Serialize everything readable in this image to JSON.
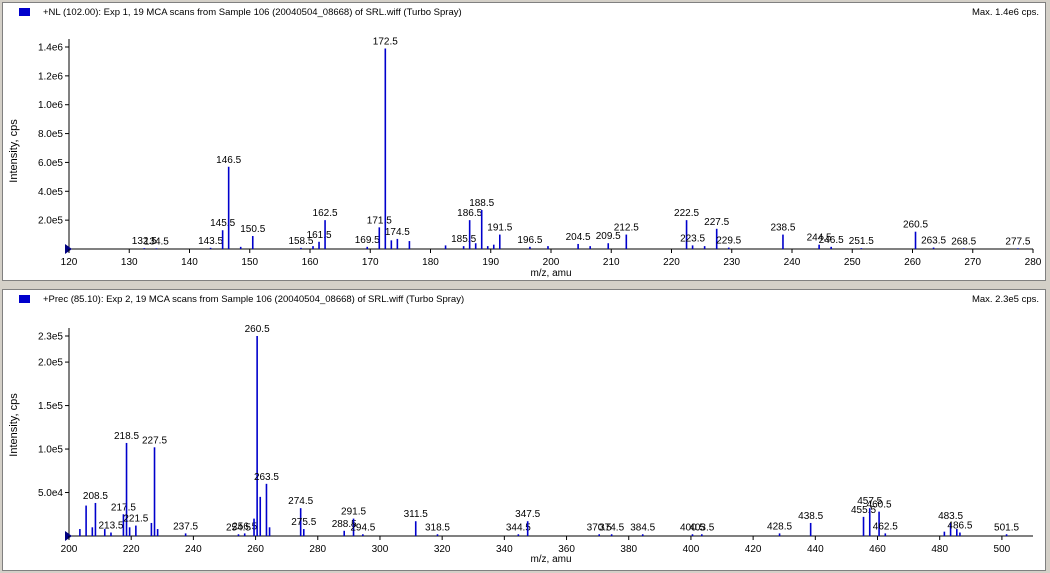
{
  "panels": [
    {
      "title": "+NL (102.00): Exp 1, 19 MCA scans from Sample 106 (20040504_08668) of SRL.wiff (Turbo Spray)",
      "max_label": "Max. 1.4e6 cps.",
      "xlabel": "m/z, amu",
      "ylabel": "Intensity, cps",
      "accent": "#0000cc"
    },
    {
      "title": "+Prec (85.10): Exp 2, 19 MCA scans from Sample 106 (20040504_08668) of SRL.wiff (Turbo Spray)",
      "max_label": "Max. 2.3e5 cps.",
      "xlabel": "m/z, amu",
      "ylabel": "Intensity, cps",
      "accent": "#0000cc"
    }
  ],
  "chart_data": [
    {
      "type": "bar",
      "title": "+NL (102.00): Exp 1, 19 MCA scans from Sample 106 (20040504_08668) of SRL.wiff (Turbo Spray)",
      "xlabel": "m/z, amu",
      "ylabel": "Intensity, cps",
      "xlim": [
        120,
        280
      ],
      "ylim": [
        0,
        1400000.0
      ],
      "xticks": [
        120,
        130,
        140,
        150,
        160,
        170,
        180,
        190,
        200,
        210,
        220,
        230,
        240,
        250,
        260,
        270,
        280
      ],
      "yticks": [
        200000.0,
        400000.0,
        600000.0,
        800000.0,
        1000000.0,
        1200000.0,
        1400000.0
      ],
      "ytick_labels": [
        "2.0e5",
        "4.0e5",
        "6.0e5",
        "8.0e5",
        "1.0e6",
        "1.2e6",
        "1.4e6"
      ],
      "peaks": [
        {
          "x": 132.5,
          "y": 6000,
          "label": "132.5"
        },
        {
          "x": 134.5,
          "y": 5000,
          "label": "134.5"
        },
        {
          "x": 143.5,
          "y": 8000,
          "label": "143.5"
        },
        {
          "x": 145.5,
          "y": 130000,
          "label": "145.5"
        },
        {
          "x": 146.5,
          "y": 570000,
          "label": "146.5"
        },
        {
          "x": 148.5,
          "y": 15000
        },
        {
          "x": 150.5,
          "y": 90000,
          "label": "150.5"
        },
        {
          "x": 158.5,
          "y": 8000,
          "label": "158.5"
        },
        {
          "x": 160.5,
          "y": 20000
        },
        {
          "x": 161.5,
          "y": 50000,
          "label": "161.5"
        },
        {
          "x": 162.5,
          "y": 200000,
          "label": "162.5"
        },
        {
          "x": 169.5,
          "y": 15000,
          "label": "169.5"
        },
        {
          "x": 171.5,
          "y": 150000,
          "label": "171.5"
        },
        {
          "x": 172.5,
          "y": 1390000,
          "label": "172.5"
        },
        {
          "x": 173.5,
          "y": 60000
        },
        {
          "x": 174.5,
          "y": 70000,
          "label": "174.5"
        },
        {
          "x": 176.5,
          "y": 55000
        },
        {
          "x": 182.5,
          "y": 25000
        },
        {
          "x": 185.5,
          "y": 20000,
          "label": "185.5"
        },
        {
          "x": 186.5,
          "y": 200000,
          "label": "186.5"
        },
        {
          "x": 187.5,
          "y": 40000
        },
        {
          "x": 188.5,
          "y": 270000,
          "label": "188.5"
        },
        {
          "x": 189.5,
          "y": 20000
        },
        {
          "x": 190.5,
          "y": 30000
        },
        {
          "x": 191.5,
          "y": 100000,
          "label": "191.5"
        },
        {
          "x": 196.5,
          "y": 15000,
          "label": "196.5"
        },
        {
          "x": 199.5,
          "y": 20000
        },
        {
          "x": 204.5,
          "y": 35000,
          "label": "204.5"
        },
        {
          "x": 206.5,
          "y": 20000
        },
        {
          "x": 209.5,
          "y": 40000,
          "label": "209.5"
        },
        {
          "x": 212.5,
          "y": 100000,
          "label": "212.5"
        },
        {
          "x": 222.5,
          "y": 200000,
          "label": "222.5"
        },
        {
          "x": 223.5,
          "y": 25000,
          "label": "223.5"
        },
        {
          "x": 225.5,
          "y": 20000
        },
        {
          "x": 227.5,
          "y": 140000,
          "label": "227.5"
        },
        {
          "x": 229.5,
          "y": 10000,
          "label": "229.5"
        },
        {
          "x": 238.5,
          "y": 100000,
          "label": "238.5"
        },
        {
          "x": 244.5,
          "y": 30000,
          "label": "244.5"
        },
        {
          "x": 246.5,
          "y": 15000,
          "label": "246.5"
        },
        {
          "x": 251.5,
          "y": 6000,
          "label": "251.5"
        },
        {
          "x": 260.5,
          "y": 120000,
          "label": "260.5"
        },
        {
          "x": 263.5,
          "y": 10000,
          "label": "263.5"
        },
        {
          "x": 268.5,
          "y": 5000,
          "label": "268.5"
        },
        {
          "x": 277.5,
          "y": 5000,
          "label": "277.5"
        }
      ]
    },
    {
      "type": "bar",
      "title": "+Prec (85.10): Exp 2, 19 MCA scans from Sample 106 (20040504_08668) of SRL.wiff (Turbo Spray)",
      "xlabel": "m/z, amu",
      "ylabel": "Intensity, cps",
      "xlim": [
        200,
        510
      ],
      "ylim": [
        0,
        230000.0
      ],
      "xticks": [
        200,
        220,
        240,
        260,
        280,
        300,
        320,
        340,
        360,
        380,
        400,
        420,
        440,
        460,
        480,
        500
      ],
      "yticks": [
        50000.0,
        100000.0,
        150000.0,
        200000.0
      ],
      "ytick_labels": [
        "5.0e4",
        "1.0e5",
        "1.5e5",
        "2.0e5"
      ],
      "max_tick": {
        "value": 230000.0,
        "label": "2.3e5"
      },
      "peaks": [
        {
          "x": 203.5,
          "y": 8000
        },
        {
          "x": 205.5,
          "y": 35000
        },
        {
          "x": 207.5,
          "y": 10000
        },
        {
          "x": 208.5,
          "y": 38000,
          "label": "208.5"
        },
        {
          "x": 211.5,
          "y": 8000
        },
        {
          "x": 213.5,
          "y": 4000,
          "label": "213.5"
        },
        {
          "x": 217.5,
          "y": 25000,
          "label": "217.5"
        },
        {
          "x": 218.5,
          "y": 107000,
          "label": "218.5"
        },
        {
          "x": 219.5,
          "y": 10000
        },
        {
          "x": 221.5,
          "y": 12000,
          "label": "221.5"
        },
        {
          "x": 226.5,
          "y": 15000
        },
        {
          "x": 227.5,
          "y": 102000,
          "label": "227.5"
        },
        {
          "x": 228.5,
          "y": 8000
        },
        {
          "x": 237.5,
          "y": 3000,
          "label": "237.5"
        },
        {
          "x": 254.5,
          "y": 2000,
          "label": "254.5"
        },
        {
          "x": 256.5,
          "y": 3000,
          "label": "256.5"
        },
        {
          "x": 259.5,
          "y": 20000
        },
        {
          "x": 260.5,
          "y": 230000,
          "label": "260.5"
        },
        {
          "x": 261.5,
          "y": 45000
        },
        {
          "x": 263.5,
          "y": 60000,
          "label": "263.5"
        },
        {
          "x": 264.5,
          "y": 10000
        },
        {
          "x": 274.5,
          "y": 32000,
          "label": "274.5"
        },
        {
          "x": 275.5,
          "y": 8000,
          "label": "275.5"
        },
        {
          "x": 288.5,
          "y": 6000,
          "label": "288.5"
        },
        {
          "x": 291.5,
          "y": 20000,
          "label": "291.5"
        },
        {
          "x": 294.5,
          "y": 2000,
          "label": "294.5"
        },
        {
          "x": 311.5,
          "y": 17000,
          "label": "311.5"
        },
        {
          "x": 318.5,
          "y": 2000,
          "label": "318.5"
        },
        {
          "x": 344.5,
          "y": 2000,
          "label": "344.5"
        },
        {
          "x": 347.5,
          "y": 17000,
          "label": "347.5"
        },
        {
          "x": 370.5,
          "y": 2000,
          "label": "370.5"
        },
        {
          "x": 374.5,
          "y": 2000,
          "label": "374.5"
        },
        {
          "x": 384.5,
          "y": 2000,
          "label": "384.5"
        },
        {
          "x": 400.5,
          "y": 2000,
          "label": "400.5"
        },
        {
          "x": 403.5,
          "y": 2000,
          "label": "403.5"
        },
        {
          "x": 428.5,
          "y": 3000,
          "label": "428.5"
        },
        {
          "x": 438.5,
          "y": 15000,
          "label": "438.5"
        },
        {
          "x": 455.5,
          "y": 22000,
          "label": "455.5"
        },
        {
          "x": 457.5,
          "y": 32000,
          "label": "457.5"
        },
        {
          "x": 460.5,
          "y": 28000,
          "label": "460.5"
        },
        {
          "x": 462.5,
          "y": 3000,
          "label": "462.5"
        },
        {
          "x": 481.5,
          "y": 5000
        },
        {
          "x": 483.5,
          "y": 15000,
          "label": "483.5"
        },
        {
          "x": 485.5,
          "y": 8000
        },
        {
          "x": 486.5,
          "y": 4000,
          "label": "486.5"
        },
        {
          "x": 501.5,
          "y": 2000,
          "label": "501.5"
        }
      ]
    }
  ]
}
